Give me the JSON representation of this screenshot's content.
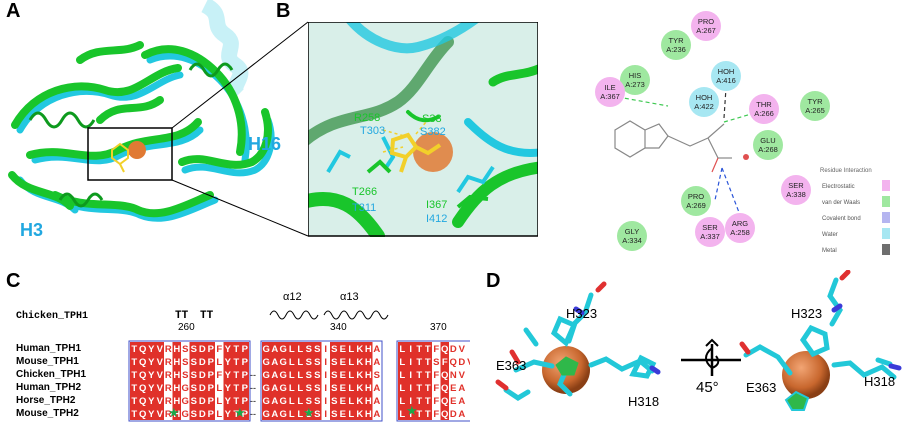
{
  "panels": {
    "a": {
      "letter": "A",
      "labels": [
        "H16",
        "H3"
      ],
      "colors": {
        "green": "#19c52b",
        "cyan": "#22c8e0",
        "sphere": "#e07a34",
        "ligand": "#f2d02a"
      }
    },
    "b": {
      "letter": "B",
      "residues": [
        {
          "green": "R258",
          "cyan": "T303"
        },
        {
          "green": "S33",
          "cyan": "S382"
        },
        {
          "green": "T266",
          "cyan": "T311"
        },
        {
          "green": "I367",
          "cyan": "I412"
        }
      ]
    },
    "interactions": {
      "residues": [
        {
          "label": "PRO\nA:267",
          "type": "electrostatic"
        },
        {
          "label": "TYR\nA:236",
          "type": "vdw"
        },
        {
          "label": "HIS\nA:273",
          "type": "vdw"
        },
        {
          "label": "ILE\nA:367",
          "type": "electrostatic"
        },
        {
          "label": "HOH\nA:416",
          "type": "water"
        },
        {
          "label": "HOH\nA:422",
          "type": "water"
        },
        {
          "label": "THR\nA:266",
          "type": "electrostatic"
        },
        {
          "label": "TYR\nA:265",
          "type": "vdw"
        },
        {
          "label": "GLU\nA:268",
          "type": "vdw"
        },
        {
          "label": "SER\nA:338",
          "type": "electrostatic"
        },
        {
          "label": "PRO\nA:269",
          "type": "vdw"
        },
        {
          "label": "ARG\nA:258",
          "type": "electrostatic"
        },
        {
          "label": "SER\nA:337",
          "type": "electrostatic"
        },
        {
          "label": "GLY\nA:334",
          "type": "vdw"
        }
      ],
      "legend": {
        "title": "Residue Interaction",
        "items": [
          {
            "label": "Electrostatic",
            "color": "#f3b3ee"
          },
          {
            "label": "van der Waals",
            "color": "#9fe8a0"
          },
          {
            "label": "Covalent bond",
            "color": "#b5b5f0"
          },
          {
            "label": "Water",
            "color": "#a7e7f2"
          },
          {
            "label": "Metal",
            "color": "#6e6e6e"
          }
        ]
      }
    },
    "c": {
      "letter": "C",
      "ss_species": "Chicken_TPH1",
      "ss_labels": [
        "TT",
        "TT",
        "α12",
        "α13"
      ],
      "numbers": [
        "260",
        "340",
        "370"
      ],
      "species": [
        "Human_TPH1",
        "Mouse_TPH1",
        "Chicken_TPH1",
        "Human_TPH2",
        "Horse_TPH2",
        "Mouse_TPH2"
      ],
      "block1": [
        "TQYVRHSSDPFYTP",
        "TQYVRHSSDPLYTP",
        "TQYVRHSSDPFYTP",
        "TQYVRHGSDPLYTP",
        "TQYVRHGSDPLYTP",
        "TQYVRHGSDPLYTP"
      ],
      "block2": [
        "GAGLLSSISELKHA",
        "GAGLLSSISELKHA",
        "GAGLLSSISELKHS",
        "GAGLLSSISELKHA",
        "GAGLLSSISELKHA",
        "GAGLLSSISELKHA"
      ],
      "block3": [
        "LITTFQDV",
        "LITTSFQDV",
        "LITTFQNV",
        "LITTFQEA",
        "LITTFQEA",
        "LITTFQDA"
      ],
      "star_color": "#1aa84a",
      "red": "#e0312a"
    },
    "d": {
      "letter": "D",
      "labels_left": [
        "H323",
        "E363",
        "H318"
      ],
      "labels_right": [
        "H323",
        "E363",
        "H318"
      ],
      "rotation": "45°"
    }
  }
}
